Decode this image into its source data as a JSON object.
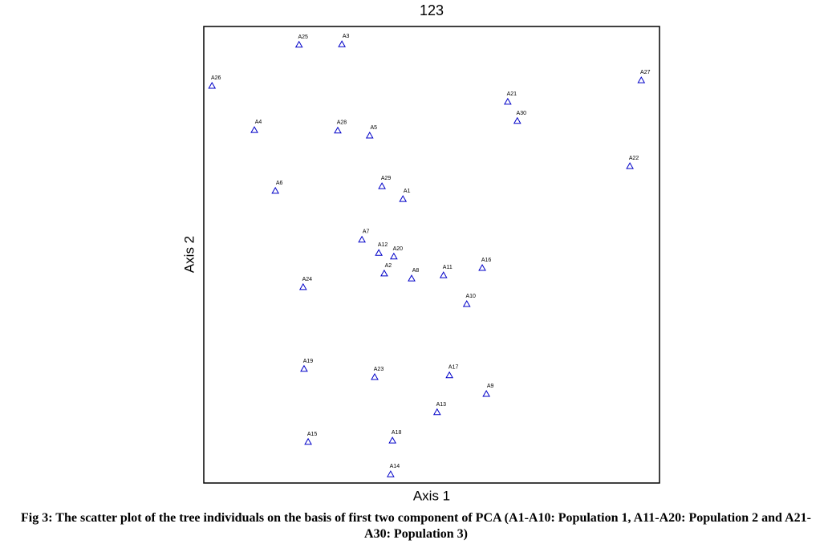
{
  "chart_data": {
    "type": "scatter",
    "title": "123",
    "x_label": "Axis 1",
    "y_label": "Axis 2",
    "color": "#0000c8",
    "xlim": [
      0,
      100
    ],
    "ylim": [
      0,
      100
    ],
    "labels": [
      "A1",
      "A2",
      "A3",
      "A4",
      "A5",
      "A6",
      "A7",
      "A8",
      "A9",
      "A10",
      "A11",
      "A12",
      "A13",
      "A14",
      "A15",
      "A16",
      "A17",
      "A18",
      "A19",
      "A20",
      "A21",
      "A22",
      "A23",
      "A24",
      "A25",
      "A26",
      "A27",
      "A28",
      "A29",
      "A30"
    ],
    "x": [
      43.7,
      39.6,
      30.3,
      11.1,
      36.4,
      15.7,
      34.7,
      45.6,
      62.0,
      57.7,
      52.6,
      38.4,
      51.2,
      41.0,
      22.9,
      61.1,
      53.9,
      41.4,
      22.0,
      41.7,
      66.7,
      93.5,
      37.5,
      21.8,
      20.9,
      1.8,
      96.0,
      29.4,
      39.1,
      68.8
    ],
    "values": [
      62.2,
      45.9,
      96.1,
      77.3,
      76.1,
      64.0,
      53.3,
      44.8,
      19.5,
      39.2,
      45.5,
      50.4,
      15.5,
      1.9,
      9.0,
      47.1,
      23.6,
      9.3,
      25.0,
      49.6,
      83.5,
      69.4,
      23.2,
      42.9,
      96.0,
      87.0,
      88.2,
      77.2,
      65.0,
      79.3
    ]
  },
  "caption": "Fig 3: The scatter plot of the tree individuals on the basis of first two component of PCA (A1-A10: Population 1, A11-A20: Population 2 and A21-A30: Population 3)"
}
